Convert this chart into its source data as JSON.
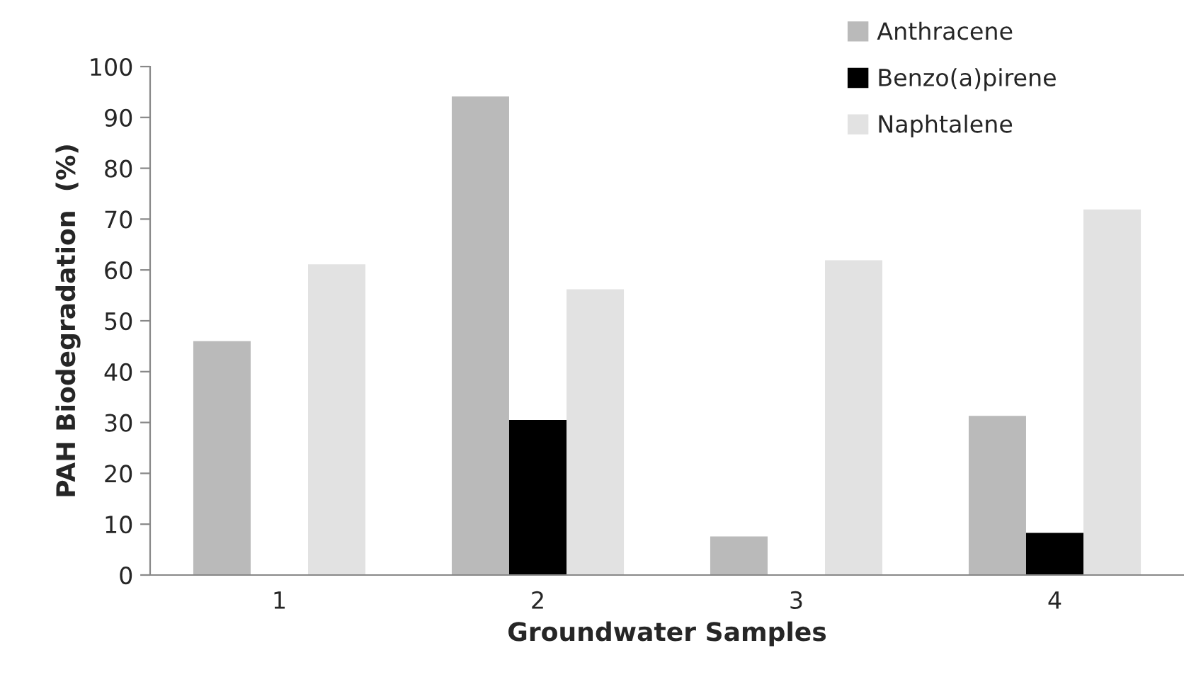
{
  "chart_data": {
    "type": "bar",
    "xlabel": "Groundwater Samples",
    "ylabel": "PAH Biodegradation  (%)",
    "categories": [
      "1",
      "2",
      "3",
      "4"
    ],
    "series": [
      {
        "name": "Anthracene",
        "color": "#bababa",
        "values": [
          46.0,
          94.1,
          7.6,
          31.3
        ]
      },
      {
        "name": "Benzo(a)pirene",
        "color": "#000000",
        "values": [
          0,
          30.5,
          0,
          8.3
        ]
      },
      {
        "name": "Naphtalene",
        "color": "#e2e2e2",
        "values": [
          61.1,
          56.2,
          61.9,
          71.9
        ]
      }
    ],
    "ylim": [
      0,
      100
    ],
    "yticks": [
      0,
      10,
      20,
      30,
      40,
      50,
      60,
      70,
      80,
      90,
      100
    ],
    "grid": false,
    "legend": "top right"
  }
}
